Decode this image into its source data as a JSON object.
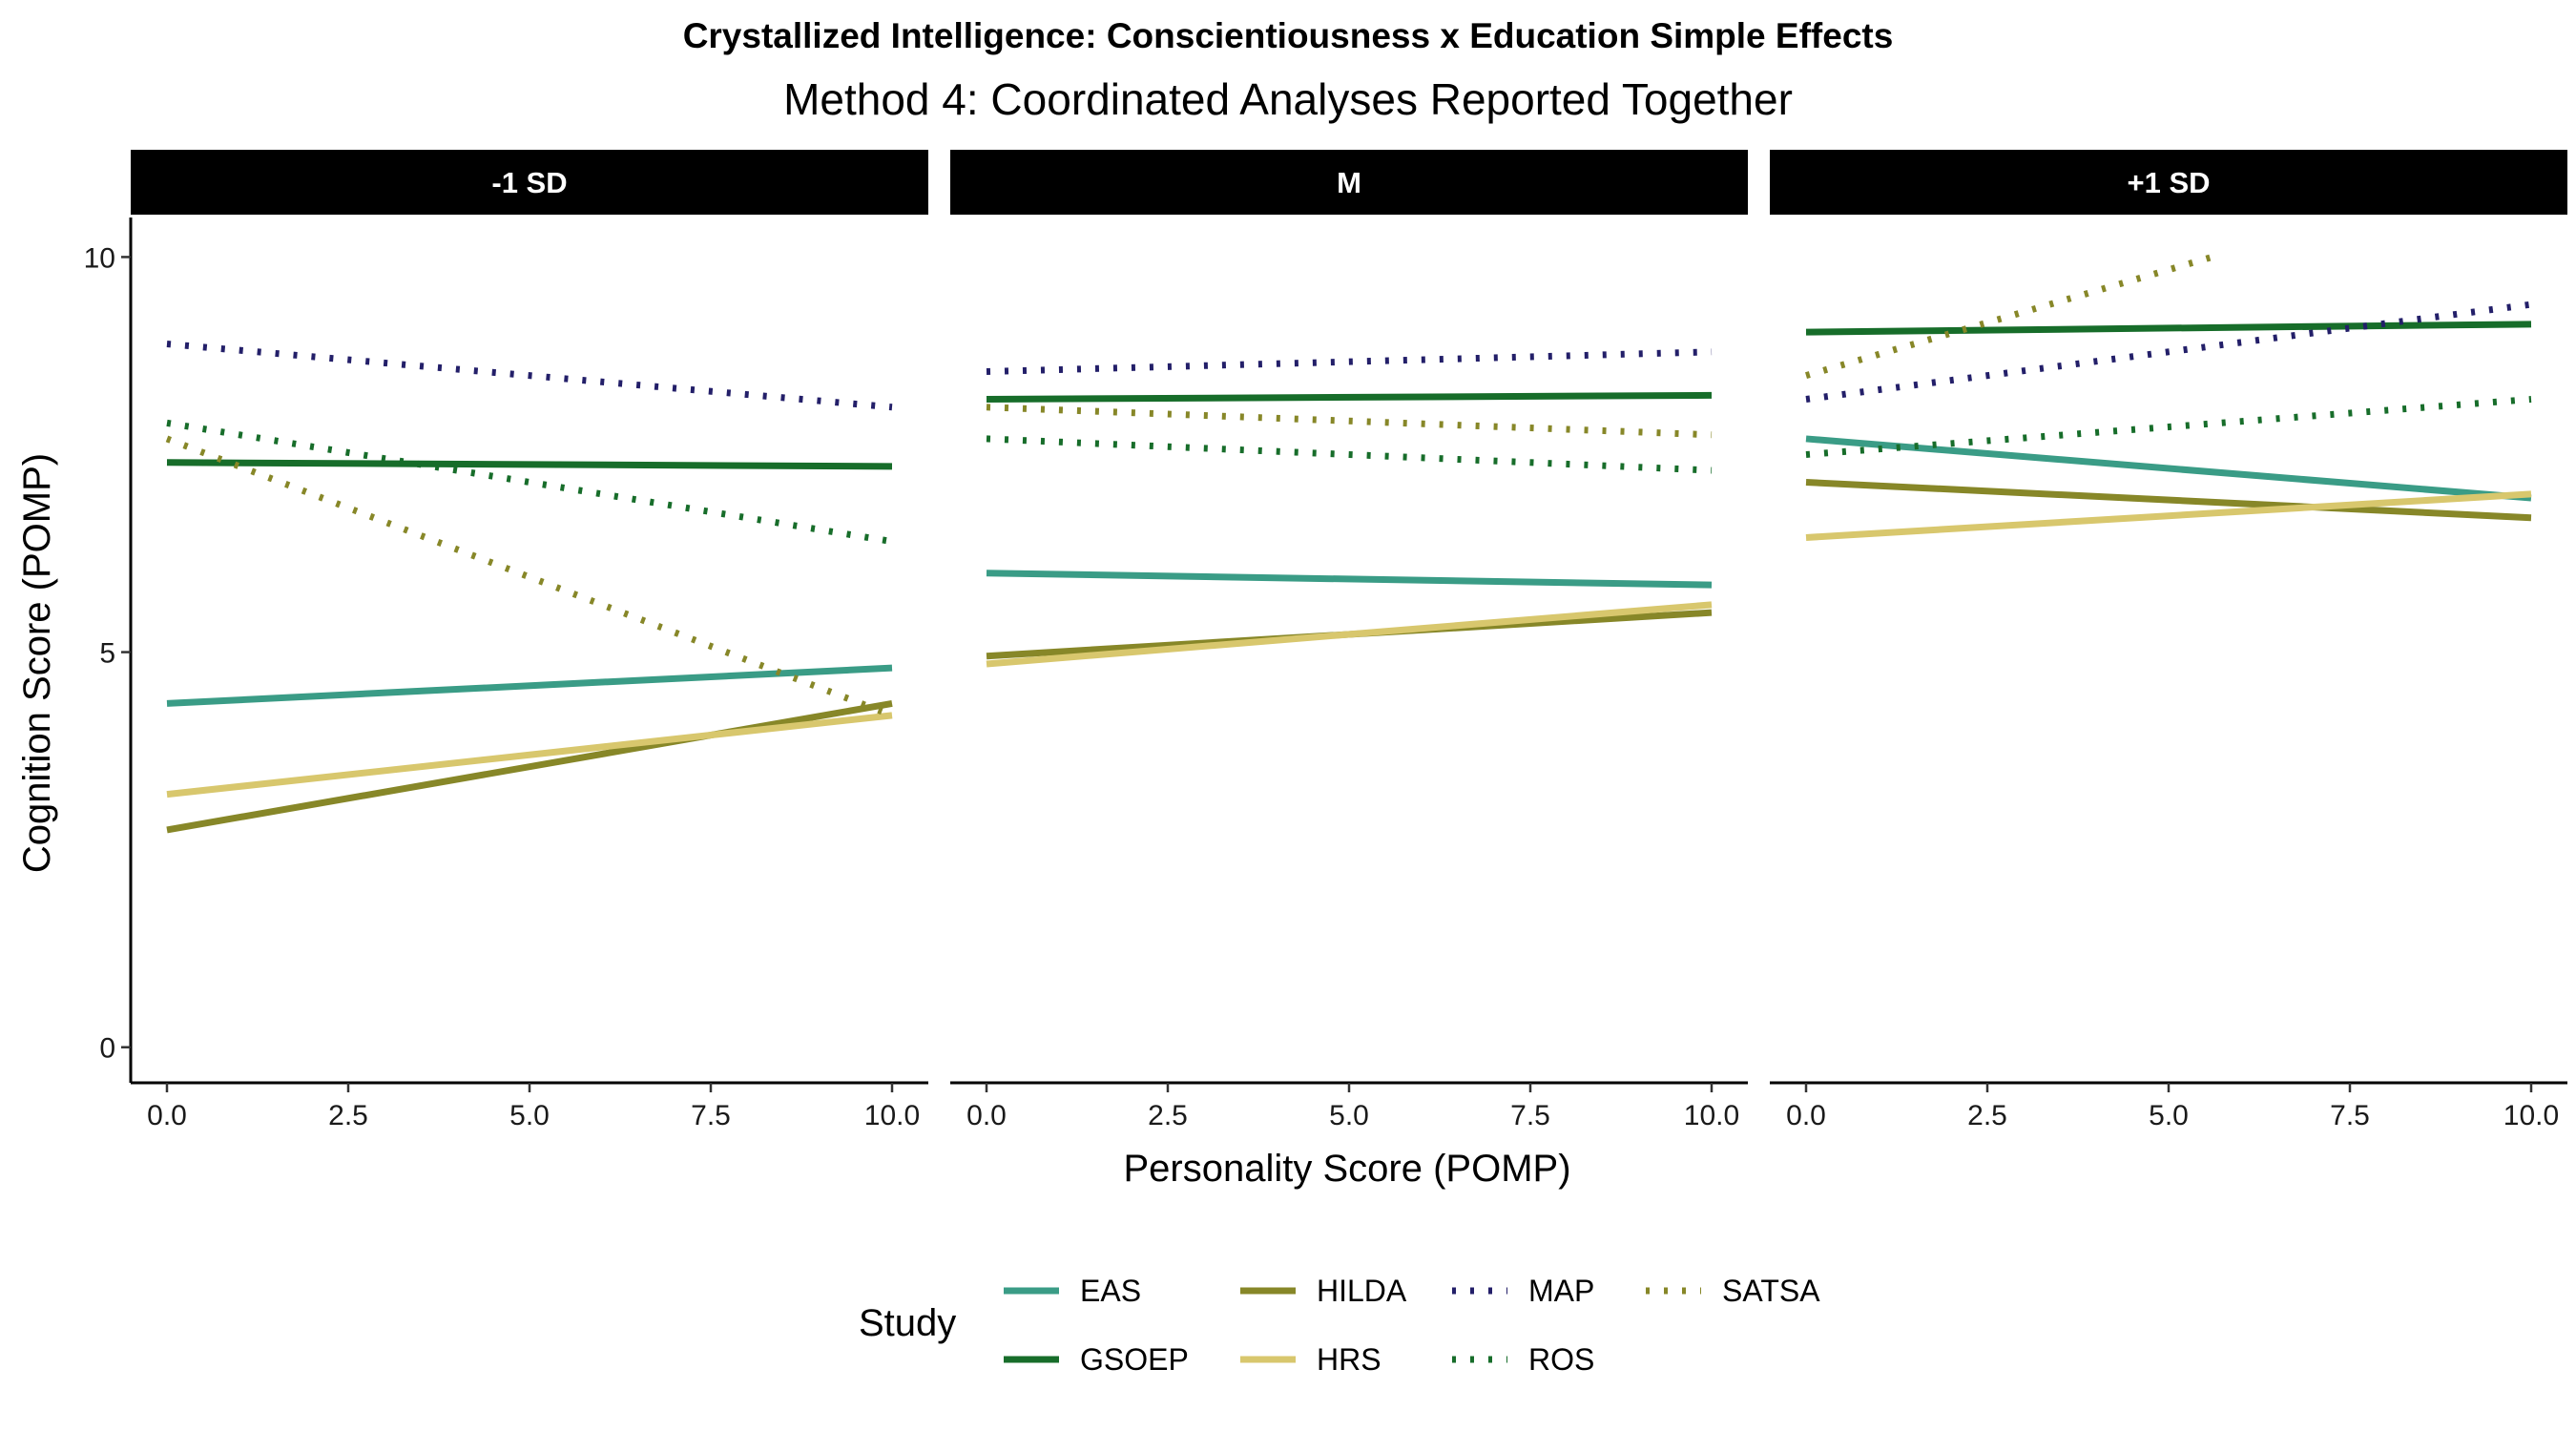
{
  "chart_data": {
    "type": "line",
    "title": "Crystallized Intelligence: Conscientiousness x Education Simple Effects",
    "subtitle": "Method 4: Coordinated Analyses Reported Together",
    "xlabel": "Personality Score (POMP)",
    "ylabel": "Cognition Score (POMP)",
    "xlim": [
      -0.5,
      10.5
    ],
    "ylim": [
      -0.45,
      10.5
    ],
    "x_ticks": [
      0,
      2.5,
      5,
      7.5,
      10
    ],
    "x_tick_labels": [
      "0.0",
      "2.5",
      "5.0",
      "7.5",
      "10.0"
    ],
    "y_ticks": [
      0,
      5,
      10
    ],
    "y_tick_labels": [
      "0",
      "5",
      "10"
    ],
    "legend_title": "Study",
    "legend_position": "bottom",
    "grid": false,
    "facets": [
      {
        "label": "-1 SD",
        "series": [
          {
            "name": "EAS",
            "x": [
              0,
              10
            ],
            "y": [
              4.35,
              4.8
            ]
          },
          {
            "name": "GSOEP",
            "x": [
              0,
              10
            ],
            "y": [
              7.4,
              7.35
            ]
          },
          {
            "name": "HILDA",
            "x": [
              0,
              10
            ],
            "y": [
              2.75,
              4.35
            ]
          },
          {
            "name": "HRS",
            "x": [
              0,
              10
            ],
            "y": [
              3.2,
              4.2
            ]
          },
          {
            "name": "MAP",
            "x": [
              0,
              10
            ],
            "y": [
              8.9,
              8.1
            ]
          },
          {
            "name": "ROS",
            "x": [
              0,
              10
            ],
            "y": [
              7.9,
              6.4
            ]
          },
          {
            "name": "SATSA",
            "x": [
              0,
              10
            ],
            "y": [
              7.7,
              4.2
            ]
          }
        ]
      },
      {
        "label": "M",
        "series": [
          {
            "name": "EAS",
            "x": [
              0,
              10
            ],
            "y": [
              6.0,
              5.85
            ]
          },
          {
            "name": "GSOEP",
            "x": [
              0,
              10
            ],
            "y": [
              8.2,
              8.25
            ]
          },
          {
            "name": "HILDA",
            "x": [
              0,
              10
            ],
            "y": [
              4.95,
              5.5
            ]
          },
          {
            "name": "HRS",
            "x": [
              0,
              10
            ],
            "y": [
              4.85,
              5.6
            ]
          },
          {
            "name": "MAP",
            "x": [
              0,
              10
            ],
            "y": [
              8.55,
              8.8
            ]
          },
          {
            "name": "ROS",
            "x": [
              0,
              10
            ],
            "y": [
              7.7,
              7.3
            ]
          },
          {
            "name": "SATSA",
            "x": [
              0,
              10
            ],
            "y": [
              8.1,
              7.75
            ]
          }
        ]
      },
      {
        "label": "+1 SD",
        "series": [
          {
            "name": "EAS",
            "x": [
              0,
              10
            ],
            "y": [
              7.7,
              6.95
            ]
          },
          {
            "name": "GSOEP",
            "x": [
              0,
              10
            ],
            "y": [
              9.05,
              9.15
            ]
          },
          {
            "name": "HILDA",
            "x": [
              0,
              10
            ],
            "y": [
              7.15,
              6.7
            ]
          },
          {
            "name": "HRS",
            "x": [
              0,
              10
            ],
            "y": [
              6.45,
              7.0
            ]
          },
          {
            "name": "MAP",
            "x": [
              0,
              10
            ],
            "y": [
              8.2,
              9.4
            ]
          },
          {
            "name": "ROS",
            "x": [
              0,
              10
            ],
            "y": [
              7.5,
              8.2
            ]
          },
          {
            "name": "SATSA",
            "x": [
              0,
              5.6
            ],
            "y": [
              8.5,
              10.0
            ]
          }
        ]
      }
    ],
    "styles": [
      {
        "name": "EAS",
        "color": "#3a9c86",
        "linetype": "solid"
      },
      {
        "name": "GSOEP",
        "color": "#176d2a",
        "linetype": "solid"
      },
      {
        "name": "HILDA",
        "color": "#878728",
        "linetype": "solid"
      },
      {
        "name": "HRS",
        "color": "#d8c76d",
        "linetype": "solid"
      },
      {
        "name": "MAP",
        "color": "#231f69",
        "linetype": "dotted"
      },
      {
        "name": "ROS",
        "color": "#176d2a",
        "linetype": "dotted"
      },
      {
        "name": "SATSA",
        "color": "#878728",
        "linetype": "dotted"
      }
    ]
  }
}
